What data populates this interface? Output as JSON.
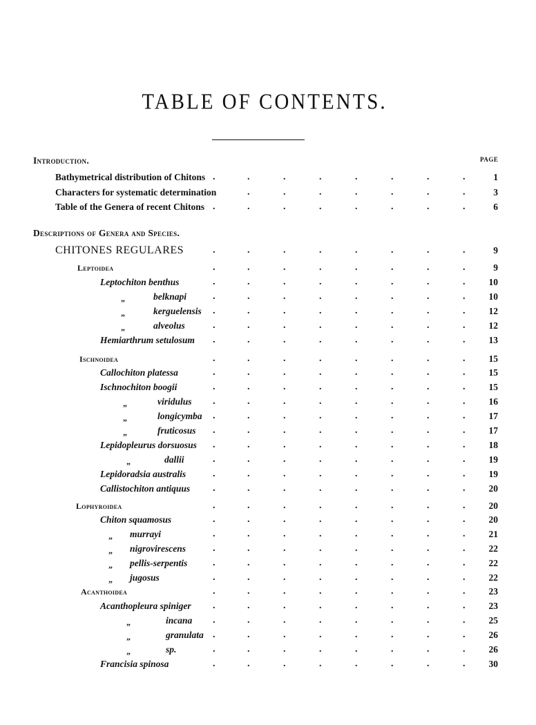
{
  "title": "TABLE OF CONTENTS.",
  "page_column_label": "PAGE",
  "ditto_mark": "„",
  "entries": [
    {
      "text": "Introduction.",
      "style": "section",
      "page": ""
    },
    {
      "text": "Bathymetrical distribution of Chitons",
      "style": "plain",
      "page": "1"
    },
    {
      "text": "Characters for systematic determination",
      "style": "plain",
      "page": "3"
    },
    {
      "text": "Table of the Genera of recent Chitons",
      "style": "plain",
      "page": "6"
    },
    {
      "text": "Descriptions of Genera and Species.",
      "style": "section",
      "page": ""
    },
    {
      "text": "CHITONES REGULARES",
      "style": "order",
      "page": "9"
    },
    {
      "text": "Leptoidea",
      "style": "family",
      "page": "9"
    },
    {
      "text": "Leptochiton benthus",
      "style": "species",
      "page": "10"
    },
    {
      "text": "belknapi",
      "style": "ditto",
      "page": "10"
    },
    {
      "text": "kerguelensis",
      "style": "ditto",
      "page": "12"
    },
    {
      "text": "alveolus",
      "style": "ditto",
      "page": "12"
    },
    {
      "text": "Hemiarthrum setulosum",
      "style": "species",
      "page": "13"
    },
    {
      "text": "Ischnoidea",
      "style": "family",
      "page": "15"
    },
    {
      "text": "Callochiton platessa",
      "style": "species",
      "page": "15"
    },
    {
      "text": "Ischnochiton boogii",
      "style": "species",
      "page": "15"
    },
    {
      "text": "viridulus",
      "style": "ditto",
      "page": "16"
    },
    {
      "text": "longicymba",
      "style": "ditto",
      "page": "17"
    },
    {
      "text": "fruticosus",
      "style": "ditto",
      "page": "17"
    },
    {
      "text": "Lepidopleurus dorsuosus",
      "style": "species",
      "page": "18"
    },
    {
      "text": "dallii",
      "style": "ditto",
      "page": "19"
    },
    {
      "text": "Lepidoradsia australis",
      "style": "species",
      "page": "19"
    },
    {
      "text": "Callistochiton antiquus",
      "style": "species",
      "page": "20"
    },
    {
      "text": "Lophyroidea",
      "style": "family",
      "page": "20"
    },
    {
      "text": "Chiton squamosus",
      "style": "species",
      "page": "20"
    },
    {
      "text": "murrayi",
      "style": "ditto",
      "page": "21"
    },
    {
      "text": "nigrovirescens",
      "style": "ditto",
      "page": "22"
    },
    {
      "text": "pellis-serpentis",
      "style": "ditto",
      "page": "22"
    },
    {
      "text": "jugosus",
      "style": "ditto",
      "page": "22"
    },
    {
      "text": "Acanthoidea",
      "style": "family",
      "page": "23"
    },
    {
      "text": "Acanthopleura spiniger",
      "style": "species",
      "page": "23"
    },
    {
      "text": "incana",
      "style": "ditto",
      "page": "25"
    },
    {
      "text": "granulata",
      "style": "ditto",
      "page": "26"
    },
    {
      "text": "sp.",
      "style": "ditto",
      "page": "26"
    },
    {
      "text": "Francisia spinosa",
      "style": "species",
      "page": "30"
    }
  ]
}
